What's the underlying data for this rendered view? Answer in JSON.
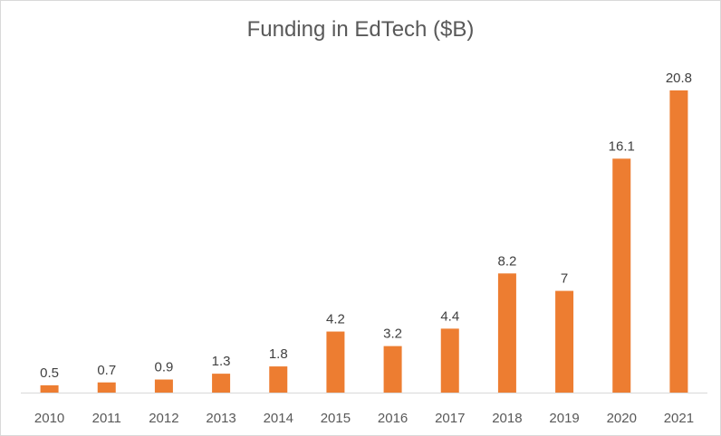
{
  "chart_data": {
    "type": "bar",
    "title": "Funding in EdTech ($B)",
    "categories": [
      "2010",
      "2011",
      "2012",
      "2013",
      "2014",
      "2015",
      "2016",
      "2017",
      "2018",
      "2019",
      "2020",
      "2021"
    ],
    "values": [
      0.5,
      0.7,
      0.9,
      1.3,
      1.8,
      4.2,
      3.2,
      4.4,
      8.2,
      7,
      16.1,
      20.8
    ],
    "data_labels": [
      "0.5",
      "0.7",
      "0.9",
      "1.3",
      "1.8",
      "4.2",
      "3.2",
      "4.4",
      "8.2",
      "7",
      "16.1",
      "20.8"
    ],
    "ylim": [
      0,
      22.6
    ],
    "bar_color": "#ED7D31",
    "axis_color": "#D9D9D9",
    "grid": false,
    "legend": "none"
  }
}
